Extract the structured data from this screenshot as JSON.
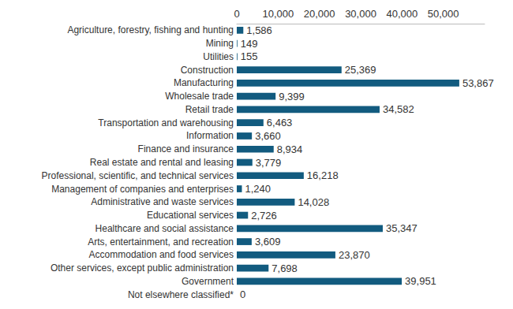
{
  "chart_data": {
    "type": "bar",
    "orientation": "horizontal",
    "categories": [
      "Agriculture, forestry, fishing and hunting",
      "Mining",
      "Utilities",
      "Construction",
      "Manufacturing",
      "Wholesale trade",
      "Retail trade",
      "Transportation and warehousing",
      "Information",
      "Finance and insurance",
      "Real estate and rental and leasing",
      "Professional, scientific, and technical services",
      "Management of companies and enterprises",
      "Administrative and waste services",
      "Educational services",
      "Healthcare and social assistance",
      "Arts, entertainment, and recreation",
      "Accommodation and food services",
      "Other services, except public administration",
      "Government",
      "Not elsewhere classified*"
    ],
    "values": [
      1586,
      149,
      155,
      25369,
      53867,
      9399,
      34582,
      6463,
      3660,
      8934,
      3779,
      16218,
      1240,
      14028,
      2726,
      35347,
      3609,
      23870,
      7698,
      39951,
      0
    ],
    "value_labels": [
      "1,586",
      "149",
      "155",
      "25,369",
      "53,867",
      "9,399",
      "34,582",
      "6,463",
      "3,660",
      "8,934",
      "3,779",
      "16,218",
      "1,240",
      "14,028",
      "2,726",
      "35,347",
      "3,609",
      "23,870",
      "7,698",
      "39,951",
      "0"
    ],
    "color": "#125b7f",
    "xlim": [
      0,
      60000
    ],
    "xticks": [
      0,
      {
        "value": 10000,
        "label": "10,000"
      },
      {
        "value": 20000,
        "label": "20,000"
      },
      {
        "value": 30000,
        "label": "30,000"
      },
      {
        "value": 40000,
        "label": "40,000"
      },
      {
        "value": 50000,
        "label": "50,000"
      }
    ],
    "grid": false,
    "data_labels": true
  }
}
